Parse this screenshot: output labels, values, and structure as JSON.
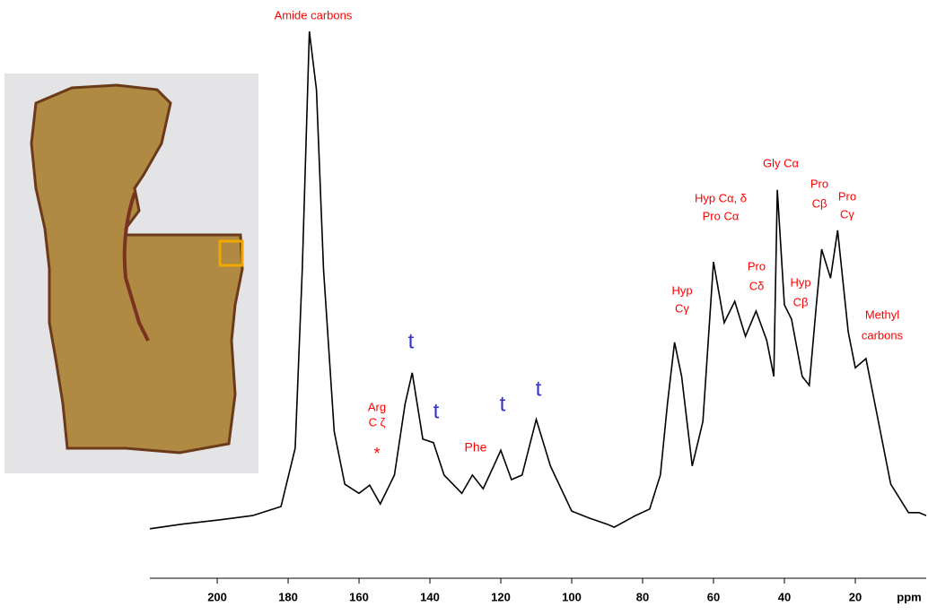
{
  "chart_data": {
    "type": "line",
    "x": [
      219,
      210,
      200,
      190,
      182,
      178,
      176,
      174,
      172,
      170,
      167,
      164,
      160,
      157,
      154,
      150,
      147,
      145,
      142,
      139,
      136,
      131,
      128,
      125,
      122,
      120,
      117,
      114,
      110,
      106,
      100,
      95,
      90,
      88,
      82,
      78,
      75,
      73,
      71,
      69,
      66,
      63,
      60,
      57,
      54,
      51,
      48,
      45,
      43,
      42,
      40,
      38,
      35,
      33,
      31,
      29.5,
      27,
      25,
      22,
      20,
      17,
      14,
      10,
      5,
      2,
      0
    ],
    "values": [
      1.8,
      2.7,
      3.5,
      4.4,
      6.2,
      17.7,
      53,
      100,
      88.5,
      53,
      21,
      10.6,
      8.8,
      10.4,
      6.7,
      12.4,
      26.5,
      32.6,
      19.5,
      18.8,
      12.4,
      8.8,
      12.4,
      9.7,
      14.2,
      17.3,
      11.5,
      12.4,
      23.4,
      14.2,
      5.3,
      3.9,
      2.7,
      2.1,
      4.4,
      5.7,
      12.4,
      26.5,
      38.6,
      31.9,
      14.2,
      23,
      54.5,
      42.5,
      46.7,
      39.8,
      44.8,
      39,
      31.9,
      68.7,
      46,
      43.2,
      31.9,
      30.1,
      46,
      57,
      51.3,
      60.7,
      40.7,
      33.6,
      35.4,
      24.8,
      10.6,
      5,
      5,
      4.4
    ],
    "color": "#000000",
    "xlim": [
      219,
      0
    ],
    "ylim": [
      0,
      100
    ],
    "xticks": [
      200,
      180,
      160,
      140,
      120,
      100,
      80,
      60,
      40,
      20
    ],
    "xlabel": "ppm",
    "annotations": [
      {
        "text": [
          "Amide carbons"
        ],
        "color": "#ff0000"
      },
      {
        "text": [
          "Arg",
          "C ζ",
          "*"
        ],
        "color": "#ff0000"
      },
      {
        "text": [
          "t"
        ],
        "color": "#3333cc"
      },
      {
        "text": [
          "t"
        ],
        "color": "#3333cc"
      },
      {
        "text": [
          "Phe"
        ],
        "color": "#ff0000"
      },
      {
        "text": [
          "t"
        ],
        "color": "#3333cc"
      },
      {
        "text": [
          "t"
        ],
        "color": "#3333cc"
      },
      {
        "text": [
          "Hyp",
          "Cγ"
        ],
        "color": "#ff0000"
      },
      {
        "text": [
          "Hyp Cα, δ",
          "Pro Cα"
        ],
        "color": "#ff0000"
      },
      {
        "text": [
          "Gly Cα"
        ],
        "color": "#ff0000"
      },
      {
        "text": [
          "Pro",
          "Cβ"
        ],
        "color": "#ff0000"
      },
      {
        "text": [
          "Pro",
          "Cγ"
        ],
        "color": "#ff0000"
      },
      {
        "text": [
          "Pro",
          "Cδ"
        ],
        "color": "#ff0000"
      },
      {
        "text": [
          "Hyp",
          "Cβ"
        ],
        "color": "#ff0000"
      },
      {
        "text": [
          "Methyl",
          "carbons"
        ],
        "color": "#ff0000"
      }
    ]
  }
}
